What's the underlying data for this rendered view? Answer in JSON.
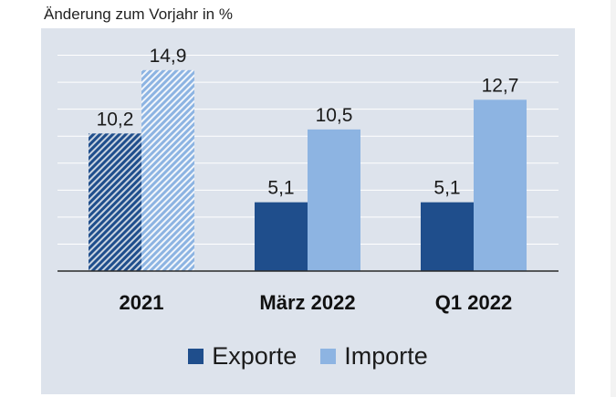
{
  "chart_data": {
    "type": "bar",
    "subtitle": "Änderung zum Vorjahr in %",
    "categories": [
      "2021",
      "März 2022",
      "Q1 2022"
    ],
    "series": [
      {
        "name": "Exporte",
        "values": [
          10.2,
          5.1,
          5.1
        ],
        "labels": [
          "10,2",
          "5,1",
          "5,1"
        ],
        "color": "#1f4e8c"
      },
      {
        "name": "Importe",
        "values": [
          14.9,
          10.5,
          12.7
        ],
        "labels": [
          "14,9",
          "10,5",
          "12,7"
        ],
        "color": "#8db4e2"
      }
    ],
    "ylim": [
      0,
      18
    ],
    "grid": true,
    "first_category_hatched": true,
    "legend_position": "bottom"
  }
}
